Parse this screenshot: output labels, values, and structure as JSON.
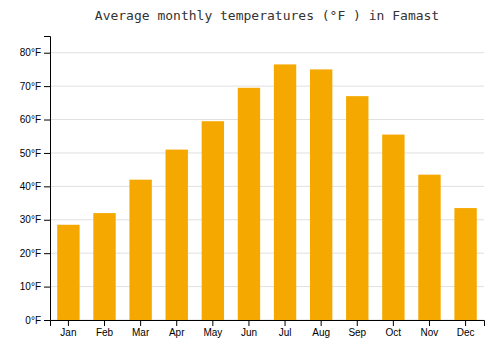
{
  "chart_data": {
    "type": "bar",
    "title": "Average monthly temperatures (°F ) in Famast",
    "categories": [
      "Jan",
      "Feb",
      "Mar",
      "Apr",
      "May",
      "Jun",
      "Jul",
      "Aug",
      "Sep",
      "Oct",
      "Nov",
      "Dec"
    ],
    "values": [
      28.5,
      32.0,
      42.0,
      51.0,
      59.5,
      69.5,
      76.5,
      75.0,
      67.0,
      55.5,
      43.5,
      33.5
    ],
    "color": "#F5A800",
    "ylim": [
      0,
      85
    ],
    "yticks": [
      {
        "value": 0,
        "label": "0°F"
      },
      {
        "value": 10,
        "label": "10°F"
      },
      {
        "value": 20,
        "label": "20°F"
      },
      {
        "value": 30,
        "label": "30°F"
      },
      {
        "value": 40,
        "label": "40°F"
      },
      {
        "value": 50,
        "label": "50°F"
      },
      {
        "value": 60,
        "label": "60°F"
      },
      {
        "value": 70,
        "label": "70°F"
      },
      {
        "value": 80,
        "label": "80°F"
      }
    ],
    "grid": true
  }
}
